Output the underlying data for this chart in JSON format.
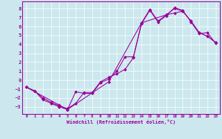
{
  "xlabel": "Windchill (Refroidissement éolien,°C)",
  "bg_color": "#cce8ee",
  "line_color": "#990099",
  "xlim": [
    -0.5,
    23.5
  ],
  "ylim": [
    -3.8,
    8.8
  ],
  "xticks": [
    0,
    1,
    2,
    3,
    4,
    5,
    6,
    7,
    8,
    9,
    10,
    11,
    12,
    13,
    14,
    15,
    16,
    17,
    18,
    19,
    20,
    21,
    22,
    23
  ],
  "yticks": [
    -3,
    -2,
    -1,
    0,
    1,
    2,
    3,
    4,
    5,
    6,
    7,
    8
  ],
  "line1_x": [
    0,
    1,
    2,
    3,
    4,
    5,
    6,
    7,
    8,
    9,
    10,
    11,
    12,
    13,
    14,
    15,
    16,
    17,
    18,
    19,
    20,
    21,
    22,
    23
  ],
  "line1_y": [
    -0.8,
    -1.2,
    -2.2,
    -2.6,
    -3.0,
    -3.3,
    -1.3,
    -1.5,
    -1.5,
    -0.3,
    0.1,
    1.0,
    2.6,
    2.6,
    6.3,
    7.8,
    6.5,
    7.2,
    8.1,
    7.8,
    6.5,
    5.2,
    5.3,
    4.1
  ],
  "line2_x": [
    0,
    1,
    2,
    3,
    4,
    5,
    6,
    7,
    8,
    9,
    10,
    11,
    12,
    13,
    14,
    15,
    16,
    17,
    18,
    19,
    20,
    21,
    22,
    23
  ],
  "line2_y": [
    -0.8,
    -1.2,
    -2.0,
    -2.5,
    -2.9,
    -3.2,
    -2.6,
    -1.4,
    -1.4,
    -0.2,
    0.3,
    0.7,
    1.2,
    2.5,
    6.4,
    7.9,
    6.6,
    7.3,
    8.0,
    7.7,
    6.6,
    5.3,
    4.9,
    4.2
  ],
  "line3_x": [
    0,
    4,
    5,
    10,
    14,
    17,
    18,
    19,
    20,
    21,
    22,
    23
  ],
  "line3_y": [
    -0.8,
    -2.8,
    -3.3,
    -0.2,
    6.4,
    7.3,
    7.5,
    7.7,
    6.6,
    5.3,
    4.9,
    4.2
  ]
}
